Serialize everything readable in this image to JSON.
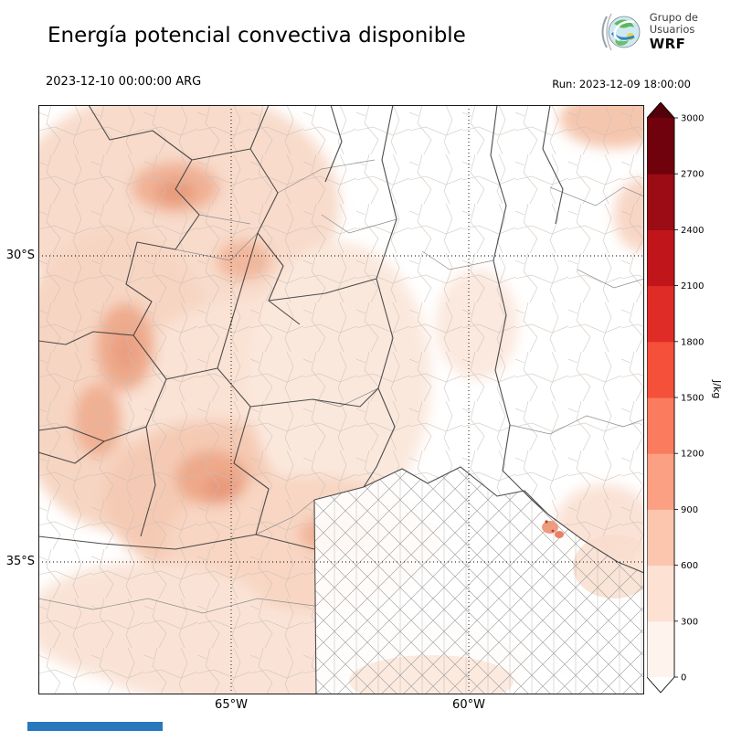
{
  "header": {
    "title": "Energía potencial convectiva disponible",
    "logo": {
      "line1": "Grupo de",
      "line2": "Usuarios",
      "line3": "WRF"
    }
  },
  "subheader": {
    "valid_time": "2023-12-10 00:00:00 ARG",
    "run_time": "Run: 2023-12-09 18:00:00"
  },
  "map": {
    "lat_labels": [
      "30°S",
      "35°S"
    ],
    "lon_labels": [
      "65°W",
      "60°W"
    ]
  },
  "colorbar": {
    "unit": "J/kg",
    "ticks": [
      0,
      300,
      600,
      900,
      1200,
      1500,
      1800,
      2100,
      2400,
      2700,
      3000
    ],
    "colors": [
      "#fff3ee",
      "#fde2d3",
      "#fcc6ae",
      "#fca083",
      "#fb7b5e",
      "#f4503a",
      "#e02c26",
      "#c0151b",
      "#9c0c14",
      "#70020e"
    ],
    "over_color": "#53000b",
    "under_color": "#ffffff"
  },
  "accent": {
    "footer_bar_color": "#2878be"
  }
}
